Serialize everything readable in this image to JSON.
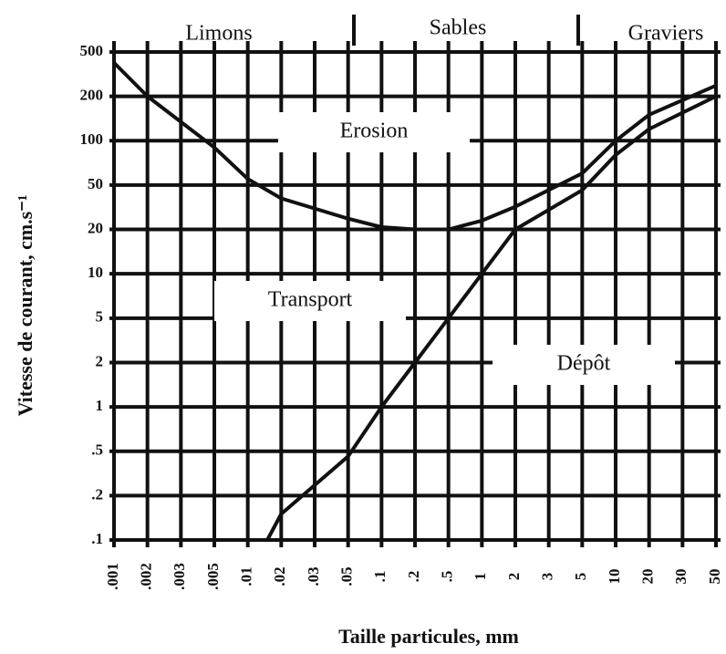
{
  "chart_data": {
    "type": "line",
    "xlabel": "Taille particules, mm",
    "ylabel": "Vitesse de courant, cm.s⁻¹",
    "zones": [
      "Limons",
      "Sables",
      "Graviers"
    ],
    "regions": [
      "Erosion",
      "Transport",
      "Dépôt"
    ],
    "log_x": true,
    "log_y": true,
    "grid": true,
    "xlim": [
      0.001,
      50
    ],
    "ylim": [
      0.1,
      500
    ],
    "xticks": [
      {
        "value": 0.001,
        "label": ".001"
      },
      {
        "value": 0.002,
        "label": ".002"
      },
      {
        "value": 0.003,
        "label": ".003"
      },
      {
        "value": 0.005,
        "label": ".005"
      },
      {
        "value": 0.01,
        "label": ".01"
      },
      {
        "value": 0.02,
        "label": ".02"
      },
      {
        "value": 0.03,
        "label": ".03"
      },
      {
        "value": 0.05,
        "label": ".05"
      },
      {
        "value": 0.1,
        "label": ".1"
      },
      {
        "value": 0.2,
        "label": ".2"
      },
      {
        "value": 0.5,
        "label": ".5"
      },
      1,
      2,
      3,
      5,
      10,
      20,
      30,
      50
    ],
    "yticks": [
      {
        "value": 0.1,
        "label": ".1"
      },
      {
        "value": 0.2,
        "label": ".2"
      },
      {
        "value": 0.5,
        "label": ".5"
      },
      1,
      2,
      5,
      10,
      20,
      50,
      100,
      200,
      500
    ],
    "series": [
      {
        "color": "#111111",
        "x": [
          0.001,
          0.002,
          0.005,
          0.01,
          0.02,
          0.05,
          0.1,
          0.2,
          0.5,
          1,
          2,
          5,
          10,
          20,
          50
        ],
        "values": [
          400,
          200,
          90,
          55,
          38,
          25,
          21,
          20,
          20,
          24,
          32,
          60,
          100,
          150,
          250
        ]
      },
      {
        "color": "#111111",
        "x": [
          0.015,
          0.02,
          0.05,
          0.1,
          0.2,
          0.5,
          1,
          2,
          5,
          10,
          20,
          50
        ],
        "values": [
          0.1,
          0.15,
          0.45,
          1,
          2,
          5,
          10,
          20,
          45,
          80,
          120,
          200
        ]
      }
    ]
  }
}
